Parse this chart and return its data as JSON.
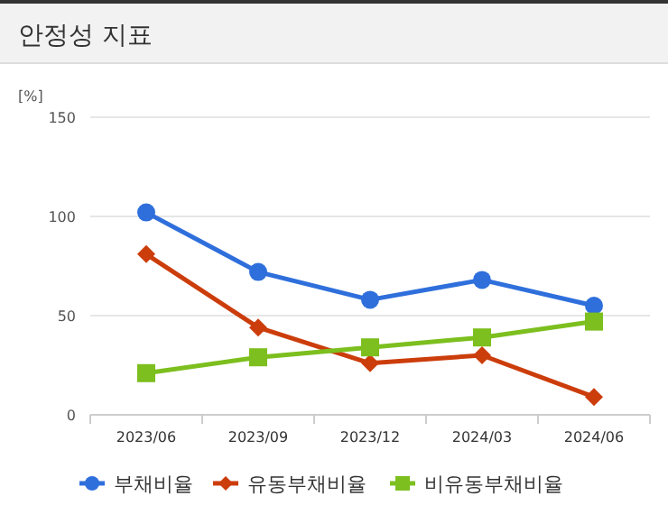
{
  "chart_data": {
    "type": "line",
    "title": "안정성 지표",
    "ylabel": "[%]",
    "categories": [
      "2023/06",
      "2023/09",
      "2023/12",
      "2024/03",
      "2024/06"
    ],
    "series": [
      {
        "name": "부채비율",
        "color": "#2f6fdc",
        "marker": "circle",
        "values": [
          102,
          72,
          58,
          68,
          55
        ]
      },
      {
        "name": "유동부채비율",
        "color": "#cc3d0c",
        "marker": "diamond",
        "values": [
          81,
          44,
          26,
          30,
          9
        ]
      },
      {
        "name": "비유동부채비율",
        "color": "#7cbf1e",
        "marker": "square",
        "values": [
          21,
          29,
          34,
          39,
          47
        ]
      }
    ],
    "ylim": [
      0,
      150
    ],
    "yticks": [
      0,
      50,
      100,
      150
    ],
    "grid": "y",
    "legend": "bottom"
  }
}
